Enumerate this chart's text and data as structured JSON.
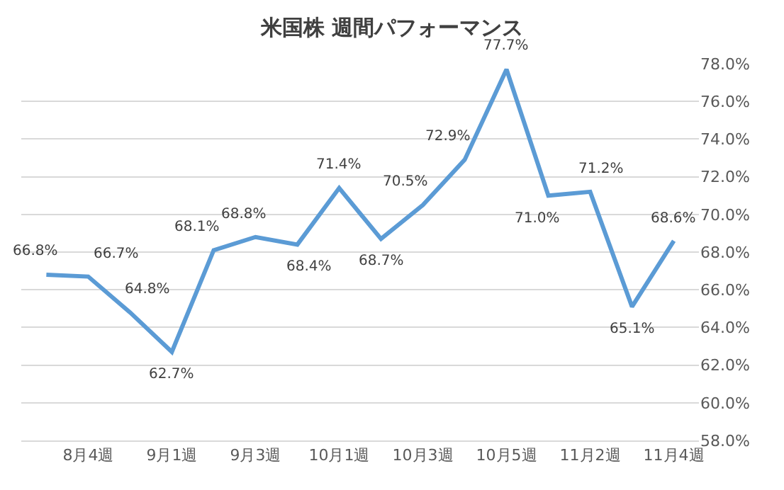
{
  "chart_data": {
    "type": "line",
    "title": "米国株 週間パフォーマンス",
    "categories": [
      null,
      "8月4週",
      null,
      "9月1週",
      null,
      "9月3週",
      null,
      "10月1週",
      null,
      "10月3週",
      null,
      "10月5週",
      null,
      "11月2週",
      null,
      "11月4週"
    ],
    "series": [
      {
        "color": "#5b9bd5",
        "values": [
          66.8,
          66.7,
          64.8,
          62.7,
          68.1,
          68.8,
          68.4,
          71.4,
          68.7,
          70.5,
          72.9,
          77.7,
          71.0,
          71.2,
          65.1,
          68.6
        ],
        "value_labels": [
          "66.8%",
          "66.7%",
          "64.8%",
          "62.7%",
          "68.1%",
          "68.8%",
          "68.4%",
          "71.4%",
          "68.7%",
          "70.5%",
          "72.9%",
          "77.7%",
          "71.0%",
          "71.2%",
          "65.1%",
          "68.6%"
        ]
      }
    ],
    "ylim": [
      58,
      78
    ],
    "yticks": [
      {
        "value": 58,
        "label": "58.0%"
      },
      {
        "value": 60,
        "label": "60.0%"
      },
      {
        "value": 62,
        "label": "62.0%"
      },
      {
        "value": 64,
        "label": "64.0%"
      },
      {
        "value": 66,
        "label": "66.0%"
      },
      {
        "value": 68,
        "label": "68.0%"
      },
      {
        "value": 70,
        "label": "70.0%"
      },
      {
        "value": 72,
        "label": "72.0%"
      },
      {
        "value": 74,
        "label": "74.0%"
      },
      {
        "value": 76,
        "label": "76.0%"
      },
      {
        "value": 78,
        "label": "78.0%"
      }
    ],
    "grid": "y",
    "marker": "none",
    "line_style": "solid"
  }
}
